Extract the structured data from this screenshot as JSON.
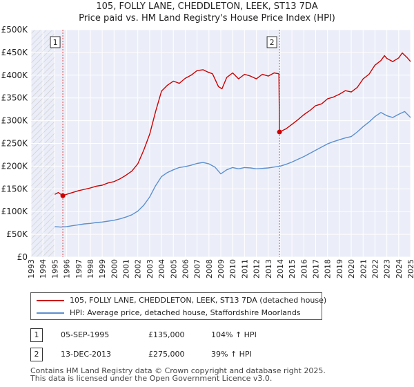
{
  "title": "105, FOLLY LANE, CHEDDLETON, LEEK, ST13 7DA",
  "subtitle": "Price paid vs. HM Land Registry's House Price Index (HPI)",
  "chart_data": {
    "type": "line",
    "xlim": [
      1993,
      2025
    ],
    "ylim": [
      0,
      500000
    ],
    "y_ticks": [
      0,
      50000,
      100000,
      150000,
      200000,
      250000,
      300000,
      350000,
      400000,
      450000,
      500000
    ],
    "y_tick_labels": [
      "£0",
      "£50K",
      "£100K",
      "£150K",
      "£200K",
      "£250K",
      "£300K",
      "£350K",
      "£400K",
      "£450K",
      "£500K"
    ],
    "x_ticks": [
      1993,
      1994,
      1995,
      1996,
      1997,
      1998,
      1999,
      2000,
      2001,
      2002,
      2003,
      2004,
      2005,
      2006,
      2007,
      2008,
      2009,
      2010,
      2011,
      2012,
      2013,
      2014,
      2015,
      2016,
      2017,
      2018,
      2019,
      2020,
      2021,
      2022,
      2023,
      2024,
      2025
    ],
    "x_tick_labels": [
      "1993",
      "1994",
      "1995",
      "1996",
      "1997",
      "1998",
      "1999",
      "2000",
      "2001",
      "2002",
      "2003",
      "2004",
      "2005",
      "2006",
      "2007",
      "2008",
      "2009",
      "2010",
      "2011",
      "2012",
      "2013",
      "2014",
      "2015",
      "2016",
      "2017",
      "2018",
      "2019",
      "2020",
      "2021",
      "2022",
      "2023",
      "2024",
      "2025"
    ],
    "grid": true,
    "hatched_before": 1995.0,
    "series": [
      {
        "name": "105, FOLLY LANE, CHEDDLETON, LEEK, ST13 7DA (detached house)",
        "color": "#cc0000",
        "x": [
          1995.0,
          1995.3,
          1995.68,
          1996.0,
          1996.5,
          1997.0,
          1997.5,
          1998.0,
          1998.5,
          1999.0,
          1999.5,
          2000.0,
          2000.5,
          2001.0,
          2001.5,
          2002.0,
          2002.5,
          2003.0,
          2003.5,
          2004.0,
          2004.5,
          2005.0,
          2005.5,
          2006.0,
          2006.5,
          2007.0,
          2007.5,
          2007.9,
          2008.3,
          2008.8,
          2009.1,
          2009.5,
          2010.0,
          2010.5,
          2011.0,
          2011.5,
          2012.0,
          2012.5,
          2013.0,
          2013.5,
          2013.9,
          2013.95,
          2014.5,
          2015.0,
          2015.5,
          2016.0,
          2016.5,
          2017.0,
          2017.5,
          2018.0,
          2018.5,
          2019.0,
          2019.5,
          2020.0,
          2020.5,
          2021.0,
          2021.5,
          2022.0,
          2022.5,
          2022.8,
          2023.0,
          2023.5,
          2024.0,
          2024.3,
          2024.7,
          2025.0
        ],
        "values": [
          138000,
          142000,
          135000,
          138000,
          142000,
          146000,
          149000,
          152000,
          156000,
          158000,
          163000,
          166000,
          172000,
          180000,
          189000,
          205000,
          235000,
          270000,
          320000,
          365000,
          378000,
          387000,
          382000,
          393000,
          400000,
          410000,
          412000,
          407000,
          403000,
          375000,
          370000,
          395000,
          405000,
          392000,
          402000,
          398000,
          392000,
          402000,
          398000,
          405000,
          403000,
          275000,
          282000,
          292000,
          302000,
          313000,
          322000,
          333000,
          337000,
          348000,
          352000,
          358000,
          366000,
          363000,
          373000,
          392000,
          402000,
          422000,
          432000,
          443000,
          437000,
          430000,
          438000,
          449000,
          439000,
          430000
        ]
      },
      {
        "name": "HPI: Average price, detached house, Staffordshire Moorlands",
        "color": "#5b8fd0",
        "x": [
          1995.0,
          1995.5,
          1996.0,
          1996.5,
          1997.0,
          1997.5,
          1998.0,
          1998.5,
          1999.0,
          1999.5,
          2000.0,
          2000.5,
          2001.0,
          2001.5,
          2002.0,
          2002.5,
          2003.0,
          2003.5,
          2004.0,
          2004.5,
          2005.0,
          2005.5,
          2006.0,
          2006.5,
          2007.0,
          2007.5,
          2008.0,
          2008.5,
          2009.0,
          2009.5,
          2010.0,
          2010.5,
          2011.0,
          2011.5,
          2012.0,
          2012.5,
          2013.0,
          2013.5,
          2014.0,
          2014.5,
          2015.0,
          2015.5,
          2016.0,
          2016.5,
          2017.0,
          2017.5,
          2018.0,
          2018.5,
          2019.0,
          2019.5,
          2020.0,
          2020.5,
          2021.0,
          2021.5,
          2022.0,
          2022.5,
          2023.0,
          2023.5,
          2024.0,
          2024.5,
          2025.0
        ],
        "values": [
          67000,
          66000,
          67000,
          69000,
          71000,
          73000,
          74000,
          76000,
          77000,
          79000,
          81000,
          84000,
          88000,
          93000,
          101000,
          114000,
          132000,
          157000,
          177000,
          186000,
          192000,
          197000,
          199000,
          202000,
          206000,
          208000,
          205000,
          198000,
          183000,
          192000,
          197000,
          194000,
          197000,
          196000,
          194000,
          195000,
          196000,
          198000,
          200000,
          204000,
          209000,
          215000,
          221000,
          228000,
          235000,
          242000,
          249000,
          254000,
          258000,
          262000,
          265000,
          275000,
          287000,
          297000,
          309000,
          318000,
          311000,
          307000,
          314000,
          320000,
          307000
        ]
      }
    ],
    "annotations": [
      {
        "label": "1",
        "x": 1995.68,
        "y": 135000
      },
      {
        "label": "2",
        "x": 2013.95,
        "y": 275000
      }
    ]
  },
  "legend": {
    "property": "105, FOLLY LANE, CHEDDLETON, LEEK, ST13 7DA (detached house)",
    "hpi": "HPI: Average price, detached house, Staffordshire Moorlands"
  },
  "transactions": [
    {
      "num": "1",
      "date": "05-SEP-1995",
      "price": "£135,000",
      "hpi": "104% ↑ HPI"
    },
    {
      "num": "2",
      "date": "13-DEC-2013",
      "price": "£275,000",
      "hpi": "39% ↑ HPI"
    }
  ],
  "footer": {
    "line1": "Contains HM Land Registry data © Crown copyright and database right 2025.",
    "line2": "This data is licensed under the Open Government Licence v3.0."
  },
  "colors": {
    "property": "#cc0000",
    "hpi": "#5b8fd0",
    "plot_bg": "#ebeef8",
    "grid": "#ffffff"
  }
}
